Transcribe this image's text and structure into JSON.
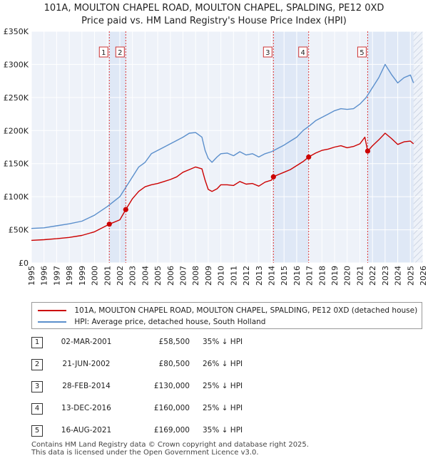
{
  "title_line1": "101A, MOULTON CHAPEL ROAD, MOULTON CHAPEL, SPALDING, PE12 0XD",
  "title_line2": "Price paid vs. HM Land Registry's House Price Index (HPI)",
  "chart_data": {
    "type": "line",
    "title": "101A, MOULTON CHAPEL ROAD, MOULTON CHAPEL, SPALDING, PE12 0XD — Price paid vs. HM Land Registry's House Price Index (HPI)",
    "xlabel": "",
    "ylabel": "",
    "xlim": [
      1995,
      2026
    ],
    "ylim": [
      0,
      350000
    ],
    "x_ticks": [
      "1995",
      "1996",
      "1997",
      "1998",
      "1999",
      "2000",
      "2001",
      "2002",
      "2003",
      "2004",
      "2005",
      "2006",
      "2007",
      "2008",
      "2009",
      "2010",
      "2011",
      "2012",
      "2013",
      "2014",
      "2015",
      "2016",
      "2017",
      "2018",
      "2019",
      "2020",
      "2021",
      "2022",
      "2023",
      "2024",
      "2025",
      "2026"
    ],
    "y_ticks": [
      {
        "value": 0,
        "label": "£0"
      },
      {
        "value": 50000,
        "label": "£50K"
      },
      {
        "value": 100000,
        "label": "£100K"
      },
      {
        "value": 150000,
        "label": "£150K"
      },
      {
        "value": 200000,
        "label": "£200K"
      },
      {
        "value": 250000,
        "label": "£250K"
      },
      {
        "value": 300000,
        "label": "£300K"
      },
      {
        "value": 350000,
        "label": "£350K"
      }
    ],
    "grid": true,
    "future_hatch_from": 2025.25,
    "series": [
      {
        "name": "101A, MOULTON CHAPEL ROAD, MOULTON CHAPEL, SPALDING, PE12 0XD (detached house)",
        "color": "#cc0000",
        "points": [
          [
            1995.0,
            34000
          ],
          [
            1996.0,
            35000
          ],
          [
            1997.0,
            36500
          ],
          [
            1998.0,
            38500
          ],
          [
            1999.0,
            41500
          ],
          [
            2000.0,
            47000
          ],
          [
            2001.17,
            58500
          ],
          [
            2002.0,
            65000
          ],
          [
            2002.47,
            80500
          ],
          [
            2003.0,
            97000
          ],
          [
            2003.5,
            108000
          ],
          [
            2004.0,
            115000
          ],
          [
            2004.5,
            118000
          ],
          [
            2005.0,
            120000
          ],
          [
            2005.5,
            123000
          ],
          [
            2006.0,
            126000
          ],
          [
            2006.5,
            130000
          ],
          [
            2007.0,
            137000
          ],
          [
            2007.5,
            141000
          ],
          [
            2008.0,
            145000
          ],
          [
            2008.5,
            142000
          ],
          [
            2008.75,
            125000
          ],
          [
            2009.0,
            111000
          ],
          [
            2009.3,
            108000
          ],
          [
            2009.7,
            112000
          ],
          [
            2010.0,
            118000
          ],
          [
            2010.5,
            118000
          ],
          [
            2011.0,
            117000
          ],
          [
            2011.5,
            123000
          ],
          [
            2012.0,
            119000
          ],
          [
            2012.5,
            120000
          ],
          [
            2013.0,
            116000
          ],
          [
            2013.5,
            122000
          ],
          [
            2014.0,
            125000
          ],
          [
            2014.16,
            130000
          ],
          [
            2014.5,
            133000
          ],
          [
            2015.0,
            137000
          ],
          [
            2015.5,
            141000
          ],
          [
            2016.0,
            147000
          ],
          [
            2016.5,
            153000
          ],
          [
            2016.95,
            160000
          ],
          [
            2017.5,
            166000
          ],
          [
            2018.0,
            170000
          ],
          [
            2018.5,
            172000
          ],
          [
            2019.0,
            175000
          ],
          [
            2019.5,
            177000
          ],
          [
            2020.0,
            174000
          ],
          [
            2020.5,
            176000
          ],
          [
            2021.0,
            180000
          ],
          [
            2021.4,
            190000
          ],
          [
            2021.62,
            169000
          ],
          [
            2022.0,
            177000
          ],
          [
            2022.5,
            186000
          ],
          [
            2023.0,
            196000
          ],
          [
            2023.5,
            188000
          ],
          [
            2024.0,
            179000
          ],
          [
            2024.5,
            183000
          ],
          [
            2025.0,
            184000
          ],
          [
            2025.25,
            180000
          ]
        ]
      },
      {
        "name": "HPI: Average price, detached house, South Holland",
        "color": "#5b8fcc",
        "points": [
          [
            1995.0,
            52000
          ],
          [
            1996.0,
            53000
          ],
          [
            1997.0,
            56000
          ],
          [
            1998.0,
            59000
          ],
          [
            1999.0,
            63000
          ],
          [
            2000.0,
            72000
          ],
          [
            2001.0,
            85000
          ],
          [
            2002.0,
            100000
          ],
          [
            2003.0,
            130000
          ],
          [
            2003.5,
            145000
          ],
          [
            2004.0,
            152000
          ],
          [
            2004.5,
            165000
          ],
          [
            2005.0,
            170000
          ],
          [
            2005.5,
            175000
          ],
          [
            2006.0,
            180000
          ],
          [
            2006.5,
            185000
          ],
          [
            2007.0,
            190000
          ],
          [
            2007.5,
            196000
          ],
          [
            2008.0,
            197000
          ],
          [
            2008.5,
            190000
          ],
          [
            2008.75,
            170000
          ],
          [
            2009.0,
            158000
          ],
          [
            2009.3,
            152000
          ],
          [
            2009.7,
            160000
          ],
          [
            2010.0,
            165000
          ],
          [
            2010.5,
            166000
          ],
          [
            2011.0,
            162000
          ],
          [
            2011.5,
            168000
          ],
          [
            2012.0,
            163000
          ],
          [
            2012.5,
            165000
          ],
          [
            2013.0,
            160000
          ],
          [
            2013.5,
            165000
          ],
          [
            2014.0,
            168000
          ],
          [
            2014.5,
            173000
          ],
          [
            2015.0,
            178000
          ],
          [
            2015.5,
            184000
          ],
          [
            2016.0,
            190000
          ],
          [
            2016.5,
            200000
          ],
          [
            2017.0,
            207000
          ],
          [
            2017.5,
            215000
          ],
          [
            2018.0,
            220000
          ],
          [
            2018.5,
            225000
          ],
          [
            2019.0,
            230000
          ],
          [
            2019.5,
            233000
          ],
          [
            2020.0,
            232000
          ],
          [
            2020.5,
            233000
          ],
          [
            2021.0,
            240000
          ],
          [
            2021.5,
            250000
          ],
          [
            2022.0,
            265000
          ],
          [
            2022.5,
            280000
          ],
          [
            2023.0,
            300000
          ],
          [
            2023.5,
            285000
          ],
          [
            2024.0,
            272000
          ],
          [
            2024.5,
            280000
          ],
          [
            2025.0,
            284000
          ],
          [
            2025.25,
            272000
          ]
        ]
      }
    ],
    "markers": [
      {
        "label": "1",
        "x": 2001.17,
        "y": 58500
      },
      {
        "label": "2",
        "x": 2002.47,
        "y": 80500
      },
      {
        "label": "3",
        "x": 2014.16,
        "y": 130000
      },
      {
        "label": "4",
        "x": 2016.95,
        "y": 160000
      },
      {
        "label": "5",
        "x": 2021.62,
        "y": 169000
      }
    ],
    "shaded_spans": [
      [
        2001.17,
        2002.47
      ],
      [
        2014.16,
        2016.95
      ],
      [
        2021.62,
        2025.25
      ]
    ],
    "legend_position": "below"
  },
  "legend": {
    "property_label": "101A, MOULTON CHAPEL ROAD, MOULTON CHAPEL, SPALDING, PE12 0XD (detached house)",
    "hpi_label": "HPI: Average price, detached house, South Holland"
  },
  "sales": [
    {
      "num": "1",
      "date": "02-MAR-2001",
      "price": "£58,500",
      "hpi": "35% ↓ HPI"
    },
    {
      "num": "2",
      "date": "21-JUN-2002",
      "price": "£80,500",
      "hpi": "26% ↓ HPI"
    },
    {
      "num": "3",
      "date": "28-FEB-2014",
      "price": "£130,000",
      "hpi": "25% ↓ HPI"
    },
    {
      "num": "4",
      "date": "13-DEC-2016",
      "price": "£160,000",
      "hpi": "25% ↓ HPI"
    },
    {
      "num": "5",
      "date": "16-AUG-2021",
      "price": "£169,000",
      "hpi": "35% ↓ HPI"
    }
  ],
  "footer": {
    "line1": "Contains HM Land Registry data © Crown copyright and database right 2025.",
    "line2": "This data is licensed under the Open Government Licence v3.0."
  },
  "colors": {
    "property": "#cc0000",
    "hpi": "#5b8fcc",
    "plot_bg": "#eef2f9",
    "shade": "#dfe8f6",
    "grid": "#ffffff"
  }
}
